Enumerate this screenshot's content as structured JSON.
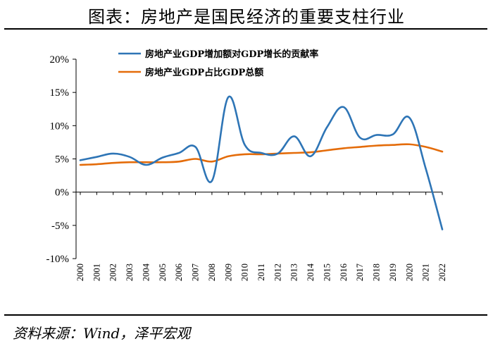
{
  "header": {
    "title": "图表：房地产是国民经济的重要支柱行业"
  },
  "footer": {
    "source": "资料来源：Wind，泽平宏观"
  },
  "chart_data": {
    "type": "line",
    "title": "",
    "xlabel": "",
    "ylabel": "",
    "categories": [
      "2000",
      "2001",
      "2002",
      "2003",
      "2004",
      "2005",
      "2006",
      "2007",
      "2008",
      "2009",
      "2010",
      "2011",
      "2012",
      "2013",
      "2014",
      "2015",
      "2016",
      "2017",
      "2018",
      "2019",
      "2020",
      "2021",
      "2022"
    ],
    "y_ticks": [
      "20%",
      "15%",
      "10%",
      "5%",
      "0%",
      "-5%",
      "-10%"
    ],
    "ylim": [
      -10,
      20
    ],
    "grid": false,
    "legend_position": "top",
    "series": [
      {
        "name": "房地产业GDP增加额对GDP增长的贡献率",
        "color": "#2E75B6",
        "values": [
          4.8,
          5.3,
          5.8,
          5.3,
          4.1,
          5.2,
          5.9,
          6.8,
          1.7,
          14.3,
          7.1,
          5.9,
          5.8,
          8.4,
          5.4,
          9.8,
          12.8,
          8.2,
          8.6,
          8.7,
          11.2,
          3.5,
          -5.6
        ]
      },
      {
        "name": "房地产业GDP占比GDP总额",
        "color": "#E46C0A",
        "values": [
          4.1,
          4.2,
          4.4,
          4.5,
          4.5,
          4.5,
          4.6,
          5.0,
          4.6,
          5.4,
          5.7,
          5.7,
          5.8,
          5.9,
          6.0,
          6.3,
          6.6,
          6.8,
          7.0,
          7.1,
          7.2,
          6.8,
          6.1
        ]
      }
    ]
  }
}
